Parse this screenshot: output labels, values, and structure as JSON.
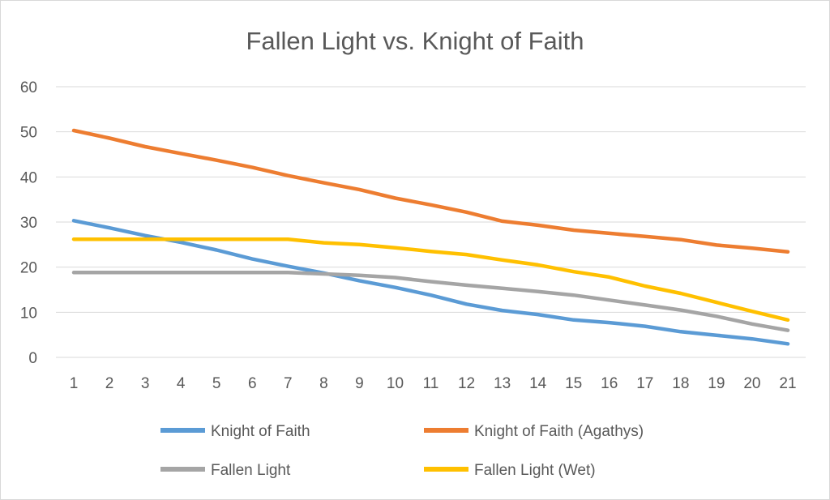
{
  "chart_data": {
    "type": "line",
    "title": "Fallen Light vs. Knight of Faith",
    "xlabel": "",
    "ylabel": "",
    "x": [
      1,
      2,
      3,
      4,
      5,
      6,
      7,
      8,
      9,
      10,
      11,
      12,
      13,
      14,
      15,
      16,
      17,
      18,
      19,
      20,
      21
    ],
    "ylim": [
      0,
      60
    ],
    "yticks": [
      0,
      10,
      20,
      30,
      40,
      50,
      60
    ],
    "grid": true,
    "legend_position": "bottom",
    "series": [
      {
        "name": "Knight of Faith",
        "color": "#5b9bd5",
        "values": [
          30.3,
          28.7,
          27.0,
          25.5,
          23.8,
          21.8,
          20.2,
          18.7,
          17.0,
          15.5,
          13.8,
          11.8,
          10.4,
          9.5,
          8.3,
          7.7,
          6.9,
          5.7,
          4.9,
          4.1,
          3.0
        ]
      },
      {
        "name": "Knight of Faith (Agathys)",
        "color": "#ed7d31",
        "values": [
          50.3,
          48.6,
          46.7,
          45.2,
          43.7,
          42.1,
          40.3,
          38.7,
          37.2,
          35.3,
          33.8,
          32.2,
          30.2,
          29.3,
          28.2,
          27.5,
          26.8,
          26.1,
          24.9,
          24.2,
          23.4
        ]
      },
      {
        "name": "Fallen Light",
        "color": "#a5a5a5",
        "values": [
          18.8,
          18.8,
          18.8,
          18.8,
          18.8,
          18.8,
          18.8,
          18.5,
          18.2,
          17.7,
          16.8,
          16.0,
          15.3,
          14.6,
          13.8,
          12.7,
          11.6,
          10.5,
          9.1,
          7.4,
          6.0
        ]
      },
      {
        "name": "Fallen Light (Wet)",
        "color": "#ffc000",
        "values": [
          26.2,
          26.2,
          26.2,
          26.2,
          26.2,
          26.2,
          26.2,
          25.4,
          25.0,
          24.3,
          23.5,
          22.8,
          21.6,
          20.5,
          19.0,
          17.8,
          15.8,
          14.2,
          12.2,
          10.2,
          8.3
        ]
      }
    ]
  }
}
